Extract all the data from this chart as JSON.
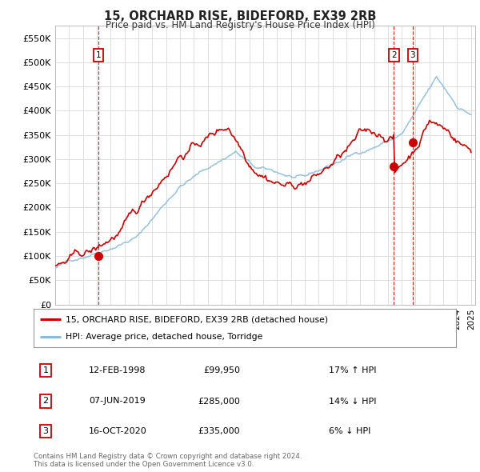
{
  "title": "15, ORCHARD RISE, BIDEFORD, EX39 2RB",
  "subtitle": "Price paid vs. HM Land Registry's House Price Index (HPI)",
  "ylabel_ticks": [
    "£0",
    "£50K",
    "£100K",
    "£150K",
    "£200K",
    "£250K",
    "£300K",
    "£350K",
    "£400K",
    "£450K",
    "£500K",
    "£550K"
  ],
  "ytick_values": [
    0,
    50000,
    100000,
    150000,
    200000,
    250000,
    300000,
    350000,
    400000,
    450000,
    500000,
    550000
  ],
  "ylim": [
    0,
    575000
  ],
  "xlim_start": 1995.0,
  "xlim_end": 2025.3,
  "red_line_color": "#cc0000",
  "blue_line_color": "#88bbdd",
  "vline_color": "#cc0000",
  "sale_points": [
    {
      "date_num": 1998.12,
      "price": 99950,
      "label": "1"
    },
    {
      "date_num": 2019.44,
      "price": 285000,
      "label": "2"
    },
    {
      "date_num": 2020.79,
      "price": 335000,
      "label": "3"
    }
  ],
  "legend_entries": [
    {
      "label": "15, ORCHARD RISE, BIDEFORD, EX39 2RB (detached house)",
      "color": "#cc0000"
    },
    {
      "label": "HPI: Average price, detached house, Torridge",
      "color": "#88bbdd"
    }
  ],
  "table_rows": [
    {
      "num": "1",
      "date": "12-FEB-1998",
      "price": "£99,950",
      "hpi": "17% ↑ HPI"
    },
    {
      "num": "2",
      "date": "07-JUN-2019",
      "price": "£285,000",
      "hpi": "14% ↓ HPI"
    },
    {
      "num": "3",
      "date": "16-OCT-2020",
      "price": "£335,000",
      "hpi": "6% ↓ HPI"
    }
  ],
  "footnote": "Contains HM Land Registry data © Crown copyright and database right 2024.\nThis data is licensed under the Open Government Licence v3.0.",
  "bg_color": "#ffffff",
  "grid_color": "#dddddd",
  "label_box_color": "#cc0000"
}
